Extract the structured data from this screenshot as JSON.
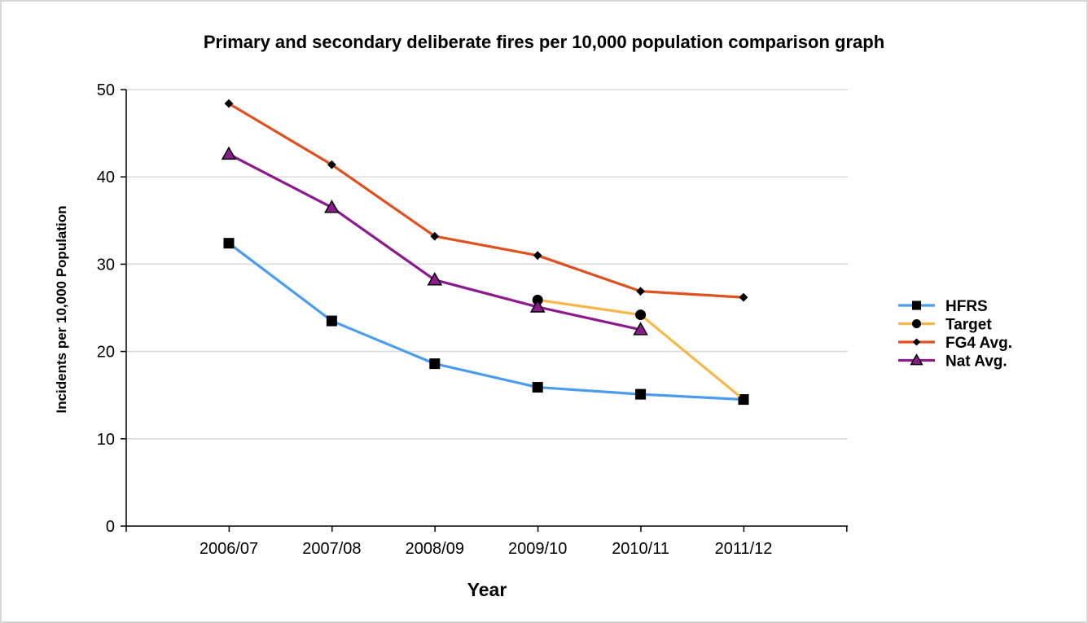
{
  "chart_data": {
    "type": "line",
    "title": "Primary and secondary deliberate fires per 10,000 population comparison graph",
    "xlabel": "Year",
    "ylabel": "Incidents per 10,000 Population",
    "categories": [
      "2006/07",
      "2007/08",
      "2008/09",
      "2009/10",
      "2010/11",
      "2011/12"
    ],
    "ylim": [
      0,
      50
    ],
    "yticks": [
      0,
      10,
      20,
      30,
      40,
      50
    ],
    "grid": "horizontal",
    "legend_position": "right",
    "series": [
      {
        "name": "HFRS",
        "color": "#4a9cf0",
        "marker": "square",
        "values": [
          32.4,
          23.5,
          18.6,
          15.9,
          15.1,
          14.5
        ]
      },
      {
        "name": "Target",
        "color": "#f7b748",
        "marker": "circle",
        "values": [
          null,
          null,
          null,
          25.9,
          24.2,
          14.5
        ]
      },
      {
        "name": "FG4 Avg.",
        "color": "#e0501e",
        "marker": "diamond",
        "values": [
          48.4,
          41.4,
          33.2,
          31.0,
          26.9,
          26.2
        ]
      },
      {
        "name": "Nat Avg.",
        "color": "#8b1a8e",
        "marker": "triangle",
        "values": [
          42.6,
          36.5,
          28.2,
          25.1,
          22.5,
          null
        ]
      }
    ]
  }
}
